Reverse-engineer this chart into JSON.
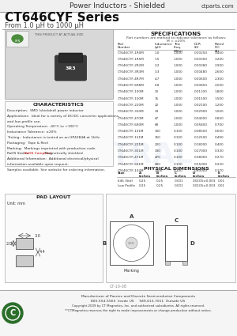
{
  "title_header": "Power Inductors - Shielded",
  "website": "ctparts.com",
  "series_title": "CT646CYF Series",
  "series_subtitle": "From 1.0 μH to 1000 μH",
  "bg_color": "#ffffff",
  "spec_title": "SPECIFICATIONS",
  "spec_note1": "Part numbers are marked to indicate tolerance as follows:",
  "spec_note2": "M = ±20%",
  "char_title": "CHARACTERISTICS",
  "phys_title": "PHYSICAL DIMENSIONS",
  "pad_title": "PAD LAYOUT",
  "char_lines": [
    "Description:  SMD (shielded) power inductor",
    "Applications:  Ideal for a variety of DC/DC converter applications,",
    "and low profile use.",
    "Operating Temperature: -40°C to +100°C",
    "Inductance Tolerance: ±20%",
    "Testing:  Inductance is tested on an HP4284A at 1kHz",
    "Packaging:  Tape & Reel",
    "Marking:  Markings imprinted with production code",
    "RoHS Status: ",
    "Additional Information:  Additional electrical/physical",
    "information available upon request.",
    "Samples available. See website for ordering information."
  ],
  "rohs_line_idx": 8,
  "rohs_prefix": "RoHS Status:  ",
  "rohs_link": "RoHS Compliant",
  "rohs_suffix": ", Magnetically shielded",
  "spec_col_headers": [
    "Part\nNumber",
    "Inductance\n(μH)",
    "Test Freq.\n(MHz)",
    "DCR\n(Ω)",
    "Rated IDC\n(A)"
  ],
  "spec_rows": [
    [
      "CT646CYF-1R0M",
      "1.0",
      "1.000",
      "0.00250",
      "3.400"
    ],
    [
      "CT646CYF-1R5M",
      "1.5",
      "1.000",
      "0.00300",
      "3.200"
    ],
    [
      "CT646CYF-2R2M",
      "2.2",
      "1.000",
      "0.00380",
      "2.900"
    ],
    [
      "CT646CYF-3R3M",
      "3.3",
      "1.000",
      "0.00480",
      "2.600"
    ],
    [
      "CT646CYF-4R7M",
      "4.7",
      "1.000",
      "0.00600",
      "2.300"
    ],
    [
      "CT646CYF-6R8M",
      "6.8",
      "1.000",
      "0.00850",
      "2.000"
    ],
    [
      "CT646CYF-100M",
      "10",
      "1.000",
      "0.01100",
      "1.800"
    ],
    [
      "CT646CYF-150M",
      "15",
      "1.000",
      "0.01500",
      "1.500"
    ],
    [
      "CT646CYF-220M",
      "22",
      "1.000",
      "0.02100",
      "1.200"
    ],
    [
      "CT646CYF-330M",
      "33",
      "1.000",
      "0.02900",
      "1.000"
    ],
    [
      "CT646CYF-470M",
      "47",
      "1.000",
      "0.04000",
      "0.850"
    ],
    [
      "CT646CYF-680M",
      "68",
      "1.000",
      "0.05800",
      "0.700"
    ],
    [
      "CT646CYF-101M",
      "100",
      "0.100",
      "0.08500",
      "0.600"
    ],
    [
      "CT646CYF-151M",
      "150",
      "0.100",
      "0.12500",
      "0.490"
    ],
    [
      "CT646CYF-221M",
      "220",
      "0.100",
      "0.18000",
      "0.400"
    ],
    [
      "CT646CYF-331M",
      "330",
      "0.100",
      "0.27000",
      "0.330"
    ],
    [
      "CT646CYF-471M",
      "470",
      "0.100",
      "0.38000",
      "0.270"
    ],
    [
      "CT646CYF-681M",
      "680",
      "0.100",
      "0.55000",
      "0.220"
    ],
    [
      "CT646CYF-102M",
      "1000",
      "0.100",
      "0.80000",
      "0.170"
    ]
  ],
  "phys_col_headers": [
    "Size",
    "A\ninches",
    "B\ninches",
    "C\ninches",
    "D\ninches",
    "E\ninches"
  ],
  "phys_row": [
    "646 (Std)",
    "0.25",
    "0.25",
    "0.001",
    "0.0105±0.003",
    "0.01"
  ],
  "phys_row2": [
    "Low Profile",
    "0.25",
    "0.25",
    "0.001",
    "0.0105±0.003",
    "0.01"
  ],
  "footer_text1": "Manufacturer of Passive and Discrete Semiconductor Components",
  "footer_text2": "800-554-5565  Inside US     949-613-7011  Outside US",
  "footer_text3": "Copyright 2009 by CT Magnetics, Inc. and authorized subsidiaries. All rights reserved.",
  "footer_text4": "**CTMagnetics reserves the right to make improvements or change production without notice.",
  "doc_id": "CT-10-08",
  "pad_unit": "Unit: mm",
  "pad_dims": [
    "3.0",
    "2.0",
    "4.4"
  ],
  "marking_label": "Marking"
}
